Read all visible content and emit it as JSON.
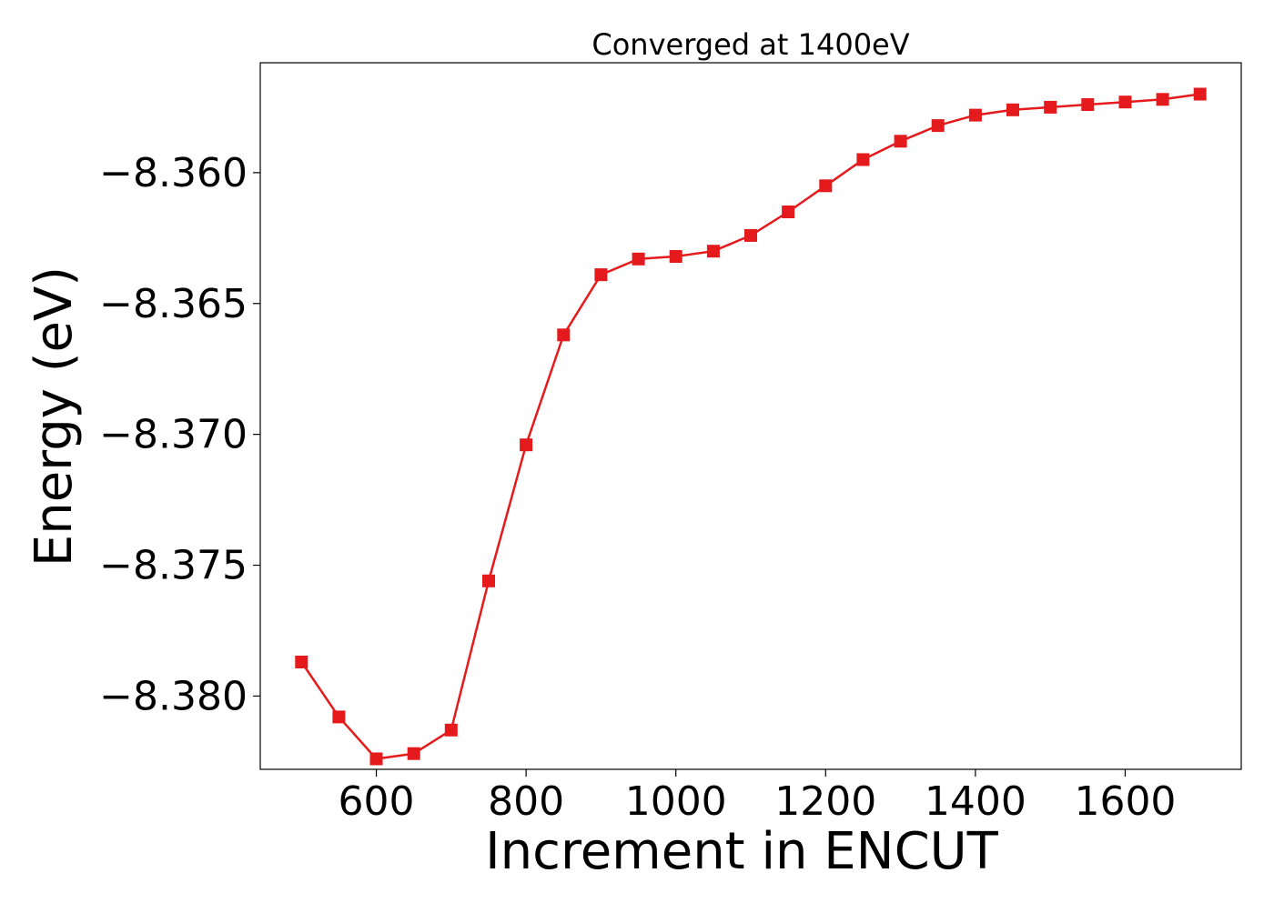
{
  "chart_data": {
    "type": "line",
    "title": "Converged at 1400eV",
    "xlabel": "Increment in ENCUT",
    "ylabel": "Energy (eV)",
    "xlim": [
      445,
      1755
    ],
    "ylim": [
      -8.3828,
      -8.3558
    ],
    "xticks": [
      600,
      800,
      1000,
      1200,
      1400,
      1600
    ],
    "xtick_labels": [
      "600",
      "800",
      "1000",
      "1200",
      "1400",
      "1600"
    ],
    "yticks": [
      -8.36,
      -8.365,
      -8.37,
      -8.375,
      -8.38
    ],
    "ytick_labels": [
      "−8.360",
      "−8.365",
      "−8.370",
      "−8.375",
      "−8.380"
    ],
    "grid": false,
    "legend": "none",
    "series": [
      {
        "color": "#e41a1c",
        "marker": "square",
        "x": [
          500,
          550,
          600,
          650,
          700,
          750,
          800,
          850,
          900,
          950,
          1000,
          1050,
          1100,
          1150,
          1200,
          1250,
          1300,
          1350,
          1400,
          1450,
          1500,
          1550,
          1600,
          1650,
          1700
        ],
        "y": [
          -8.3787,
          -8.3808,
          -8.3824,
          -8.3822,
          -8.3813,
          -8.3756,
          -8.3704,
          -8.3662,
          -8.3639,
          -8.3633,
          -8.3632,
          -8.363,
          -8.3624,
          -8.3615,
          -8.3605,
          -8.3595,
          -8.3588,
          -8.3582,
          -8.3578,
          -8.3576,
          -8.3575,
          -8.3574,
          -8.3573,
          -8.3572,
          -8.357
        ]
      }
    ]
  }
}
